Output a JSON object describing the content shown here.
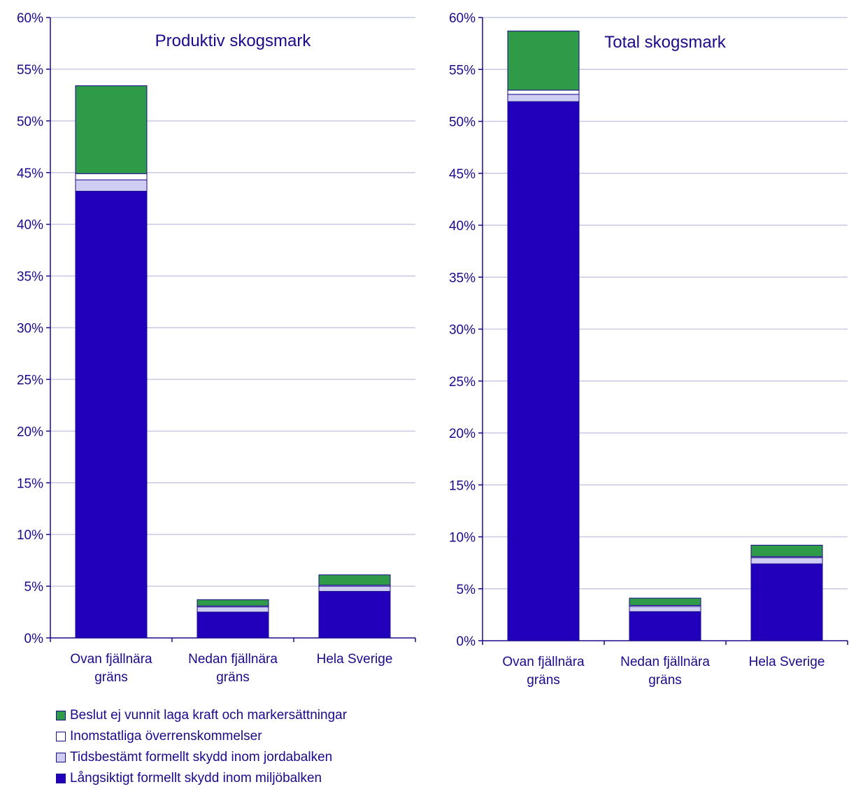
{
  "colors": {
    "axis": "#1a0a8c",
    "grid": "#c9c9e3",
    "text": "#1a0a8c"
  },
  "legend": [
    {
      "label": "Beslut ej vunnit laga kraft och markersättningar",
      "color": "#2f9a47"
    },
    {
      "label": "Inomstatliga överrenskommelser",
      "color": "#ffffff"
    },
    {
      "label": "Tidsbestämt formellt skydd inom jordabalken",
      "color": "#cfcdf2"
    },
    {
      "label": "Långsiktigt formellt skydd inom miljöbalken",
      "color": "#2200bb"
    }
  ],
  "chart_data": [
    {
      "type": "bar",
      "stacked": true,
      "title": "Produktiv skogsmark",
      "categories": [
        [
          "Ovan fjällnära",
          "gräns"
        ],
        [
          "Nedan fjällnära",
          "gräns"
        ],
        [
          "Hela Sverige"
        ]
      ],
      "ylim": [
        0,
        60
      ],
      "yticks": [
        "0%",
        "5%",
        "10%",
        "15%",
        "20%",
        "25%",
        "30%",
        "35%",
        "40%",
        "45%",
        "50%",
        "55%",
        "60%"
      ],
      "grid": true,
      "series": [
        {
          "name": "Långsiktigt formellt skydd inom miljöbalken",
          "color": "#2200bb",
          "values": [
            43.2,
            2.5,
            4.5
          ]
        },
        {
          "name": "Tidsbestämt formellt skydd inom jordabalken",
          "color": "#cfcdf2",
          "values": [
            1.1,
            0.5,
            0.5
          ]
        },
        {
          "name": "Inomstatliga överrenskommelser",
          "color": "#ffffff",
          "values": [
            0.6,
            0.1,
            0.1
          ]
        },
        {
          "name": "Beslut ej vunnit laga kraft och markersättningar",
          "color": "#2f9a47",
          "values": [
            8.5,
            0.6,
            1.0
          ]
        }
      ]
    },
    {
      "type": "bar",
      "stacked": true,
      "title": "Total skogsmark",
      "categories": [
        [
          "Ovan fjällnära",
          "gräns"
        ],
        [
          "Nedan fjällnära",
          "gräns"
        ],
        [
          "Hela Sverige"
        ]
      ],
      "ylim": [
        0,
        60
      ],
      "yticks": [
        "0%",
        "5%",
        "10%",
        "15%",
        "20%",
        "25%",
        "30%",
        "35%",
        "40%",
        "45%",
        "50%",
        "55%",
        "60%"
      ],
      "grid": true,
      "series": [
        {
          "name": "Långsiktigt formellt skydd inom miljöbalken",
          "color": "#2200bb",
          "values": [
            51.9,
            2.8,
            7.4
          ]
        },
        {
          "name": "Tidsbestämt formellt skydd inom jordabalken",
          "color": "#cfcdf2",
          "values": [
            0.7,
            0.5,
            0.6
          ]
        },
        {
          "name": "Inomstatliga överrenskommelser",
          "color": "#ffffff",
          "values": [
            0.4,
            0.1,
            0.1
          ]
        },
        {
          "name": "Beslut ej vunnit laga kraft och markersättningar",
          "color": "#2f9a47",
          "values": [
            5.7,
            0.7,
            1.1
          ]
        }
      ]
    }
  ]
}
